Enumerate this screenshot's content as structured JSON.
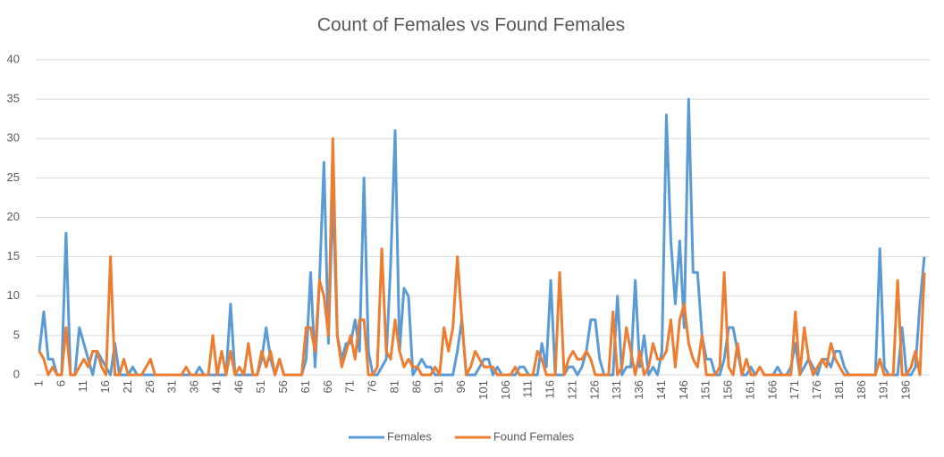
{
  "chart_data": {
    "type": "line",
    "title": "Count of Females vs Found Females",
    "categories": [
      1,
      null,
      null,
      null,
      null,
      6,
      null,
      null,
      null,
      null,
      11,
      null,
      null,
      null,
      null,
      16,
      null,
      null,
      null,
      null,
      21,
      null,
      null,
      null,
      null,
      26,
      null,
      null,
      null,
      null,
      31,
      null,
      null,
      null,
      null,
      36,
      null,
      null,
      null,
      null,
      41,
      null,
      null,
      null,
      null,
      46,
      null,
      null,
      null,
      null,
      51,
      null,
      null,
      null,
      null,
      56,
      null,
      null,
      null,
      null,
      61,
      null,
      null,
      null,
      null,
      66,
      null,
      null,
      null,
      null,
      71,
      null,
      null,
      null,
      null,
      76,
      null,
      null,
      null,
      null,
      81,
      null,
      null,
      null,
      null,
      86,
      null,
      null,
      null,
      null,
      91,
      null,
      null,
      null,
      null,
      96,
      null,
      null,
      null,
      null,
      101,
      null,
      null,
      null,
      null,
      106,
      null,
      null,
      null,
      null,
      111,
      null,
      null,
      null,
      null,
      116,
      null,
      null,
      null,
      null,
      121,
      null,
      null,
      null,
      null,
      126,
      null,
      null,
      null,
      null,
      131,
      null,
      null,
      null,
      null,
      136,
      null,
      null,
      null,
      null,
      141,
      null,
      null,
      null,
      null,
      146,
      null,
      null,
      null,
      null,
      151,
      null,
      null,
      null,
      null,
      156,
      null,
      null,
      null,
      null,
      161,
      null,
      null,
      null,
      null,
      166,
      null,
      null,
      null,
      null,
      171,
      null,
      null,
      null,
      null,
      176,
      null,
      null,
      null,
      null,
      181,
      null,
      null,
      null,
      null,
      186,
      null,
      null,
      null,
      null,
      191,
      null,
      null,
      null,
      null,
      196,
      null,
      null,
      null,
      null
    ],
    "series": [
      {
        "name": "Females",
        "color": "#5b9bd5",
        "values": [
          3,
          8,
          2,
          2,
          0,
          0,
          18,
          0,
          0,
          6,
          4,
          2,
          0,
          3,
          2,
          1,
          0,
          4,
          0,
          0,
          0,
          1,
          0,
          0,
          0,
          0,
          0,
          0,
          0,
          0,
          0,
          0,
          0,
          0,
          0,
          0,
          1,
          0,
          0,
          0,
          0,
          0,
          0,
          9,
          0,
          0,
          0,
          0,
          0,
          0,
          2,
          6,
          2,
          0,
          2,
          0,
          0,
          0,
          0,
          0,
          2,
          13,
          1,
          12,
          27,
          4,
          23,
          5,
          2,
          4,
          4,
          7,
          3,
          25,
          3,
          0,
          0,
          1,
          2,
          14,
          31,
          3,
          11,
          10,
          0,
          1,
          2,
          1,
          1,
          0,
          0,
          0,
          0,
          0,
          3,
          7,
          0,
          0,
          0,
          1,
          2,
          2,
          0,
          1,
          0,
          0,
          0,
          0,
          1,
          1,
          0,
          0,
          0,
          4,
          1,
          12,
          0,
          0,
          0,
          1,
          1,
          0,
          1,
          3,
          7,
          7,
          2,
          0,
          0,
          0,
          10,
          0,
          1,
          1,
          12,
          1,
          5,
          0,
          1,
          0,
          3,
          33,
          17,
          9,
          17,
          6,
          35,
          13,
          13,
          5,
          2,
          2,
          0,
          0,
          2,
          6,
          6,
          3,
          0,
          0,
          1,
          0,
          1,
          0,
          0,
          0,
          1,
          0,
          0,
          1,
          4,
          0,
          1,
          2,
          1,
          0,
          2,
          2,
          1,
          3,
          3,
          1,
          0,
          0,
          0,
          0,
          0,
          0,
          0,
          16,
          1,
          0,
          0,
          0,
          6,
          0,
          0,
          1,
          9,
          15
        ]
      },
      {
        "name": "Found Females",
        "color": "#ed7d31",
        "values": [
          3,
          2,
          0,
          1,
          0,
          0,
          6,
          0,
          0,
          1,
          2,
          1,
          3,
          3,
          1,
          0,
          15,
          0,
          0,
          2,
          0,
          0,
          0,
          0,
          1,
          2,
          0,
          0,
          0,
          0,
          0,
          0,
          0,
          1,
          0,
          0,
          0,
          0,
          0,
          5,
          0,
          3,
          0,
          3,
          0,
          1,
          0,
          4,
          0,
          0,
          3,
          1,
          3,
          0,
          2,
          0,
          0,
          0,
          0,
          0,
          6,
          6,
          3,
          12,
          10,
          5,
          30,
          5,
          1,
          3,
          5,
          2,
          7,
          7,
          0,
          0,
          1,
          16,
          3,
          2,
          7,
          3,
          1,
          2,
          1,
          1,
          0,
          0,
          0,
          1,
          0,
          6,
          3,
          6,
          15,
          7,
          0,
          1,
          3,
          2,
          1,
          1,
          1,
          0,
          0,
          0,
          0,
          1,
          0,
          0,
          0,
          0,
          3,
          2,
          0,
          0,
          0,
          13,
          0,
          2,
          3,
          2,
          2,
          3,
          2,
          0,
          0,
          0,
          0,
          8,
          0,
          1,
          6,
          3,
          0,
          3,
          0,
          1,
          4,
          2,
          2,
          3,
          7,
          1,
          7,
          9,
          4,
          2,
          1,
          5,
          0,
          0,
          0,
          1,
          13,
          1,
          0,
          4,
          0,
          2,
          0,
          0,
          1,
          0,
          0,
          0,
          0,
          0,
          0,
          0,
          8,
          0,
          6,
          2,
          0,
          1,
          2,
          1,
          4,
          2,
          1,
          0,
          0,
          0,
          0,
          0,
          0,
          0,
          0,
          2,
          0,
          0,
          0,
          12,
          0,
          0,
          1,
          3,
          0,
          13
        ]
      }
    ],
    "ylim": [
      0,
      40
    ],
    "yticks": [
      0,
      5,
      10,
      15,
      20,
      25,
      30,
      35,
      40
    ],
    "grid": true,
    "legend": "bottom"
  }
}
